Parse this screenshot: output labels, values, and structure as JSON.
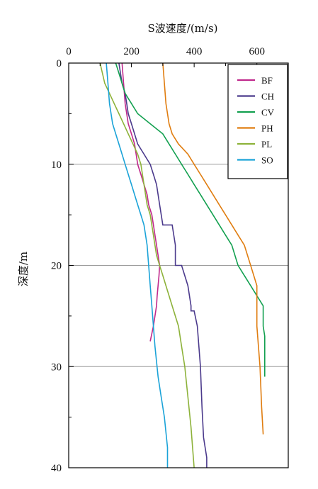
{
  "chart_data": {
    "type": "line",
    "title": "",
    "xlabel": "S波速度/(m/s)",
    "ylabel": "深度/m",
    "xlim": [
      0,
      700
    ],
    "ylim": [
      0,
      40
    ],
    "x_ticks": [
      0,
      200,
      400,
      600
    ],
    "y_ticks": [
      0,
      10,
      20,
      30,
      40
    ],
    "x_axis_position": "top",
    "y_inverted": true,
    "grid": "horizontal",
    "legend_position": "top-right",
    "series": [
      {
        "name": "BF",
        "color": "#c0298c",
        "velocity": [
          170,
          175,
          180,
          185,
          190,
          200,
          210,
          215,
          220,
          230,
          240,
          250,
          255,
          265,
          270,
          275,
          280,
          285,
          290,
          288,
          285,
          282,
          280,
          275,
          270,
          260
        ],
        "depth": [
          0,
          2,
          4,
          5,
          6,
          7,
          8,
          9,
          10,
          11,
          12,
          13,
          14,
          15,
          16,
          17,
          18,
          19,
          20,
          21,
          22,
          23,
          24,
          25,
          26,
          27.5
        ]
      },
      {
        "name": "CH",
        "color": "#4b3a8c",
        "velocity": [
          160,
          170,
          180,
          190,
          200,
          210,
          220,
          240,
          260,
          270,
          280,
          290,
          300,
          330,
          340,
          340,
          360,
          380,
          390,
          390,
          400,
          410,
          415,
          420,
          425,
          430,
          440,
          440
        ],
        "depth": [
          0,
          2,
          3,
          5,
          6,
          7,
          8,
          9,
          10,
          11,
          12,
          14,
          16,
          16,
          18,
          20,
          20,
          22,
          24,
          24.5,
          24.5,
          26,
          28,
          30,
          34,
          37,
          39,
          40
        ]
      },
      {
        "name": "CV",
        "color": "#13a050",
        "velocity": [
          150,
          160,
          170,
          180,
          200,
          220,
          260,
          300,
          320,
          340,
          360,
          380,
          400,
          420,
          440,
          460,
          480,
          500,
          520,
          540,
          560,
          580,
          600,
          620,
          620,
          625,
          625
        ],
        "depth": [
          0,
          1,
          2,
          3,
          4,
          5,
          6,
          7,
          8,
          9,
          10,
          11,
          12,
          13,
          14,
          15,
          16,
          17,
          18,
          20,
          21,
          22,
          23,
          24,
          26,
          27,
          31
        ]
      },
      {
        "name": "PH",
        "color": "#e07d10",
        "velocity": [
          300,
          305,
          310,
          320,
          330,
          350,
          380,
          400,
          420,
          440,
          460,
          480,
          500,
          520,
          540,
          560,
          580,
          600,
          600,
          610,
          615,
          620
        ],
        "depth": [
          0,
          2,
          4,
          6,
          7,
          8,
          9,
          10,
          11,
          12,
          13,
          14,
          15,
          16,
          17,
          18,
          20,
          22,
          26,
          30,
          34,
          36.7
        ]
      },
      {
        "name": "PL",
        "color": "#8db23a",
        "velocity": [
          100,
          115,
          130,
          145,
          160,
          175,
          190,
          205,
          220,
          230,
          240,
          250,
          260,
          270,
          280,
          290,
          300,
          310,
          330,
          350,
          360,
          370,
          380,
          390,
          400
        ],
        "depth": [
          0,
          2,
          3,
          4,
          5,
          6,
          7,
          8,
          9,
          10,
          12,
          14,
          15,
          17,
          19,
          20,
          21,
          22,
          24,
          26,
          28,
          30,
          33,
          36,
          40
        ]
      },
      {
        "name": "SO",
        "color": "#1ba3d8",
        "velocity": [
          120,
          125,
          130,
          140,
          150,
          160,
          170,
          180,
          190,
          200,
          210,
          220,
          230,
          240,
          250,
          255,
          260,
          265,
          270,
          275,
          285,
          295,
          305,
          315,
          315
        ],
        "depth": [
          0,
          2,
          4,
          6,
          7,
          8,
          9,
          10,
          11,
          12,
          13,
          14,
          15,
          16,
          18,
          20,
          22,
          24,
          26,
          28,
          31,
          33,
          35,
          38,
          40
        ]
      }
    ]
  }
}
